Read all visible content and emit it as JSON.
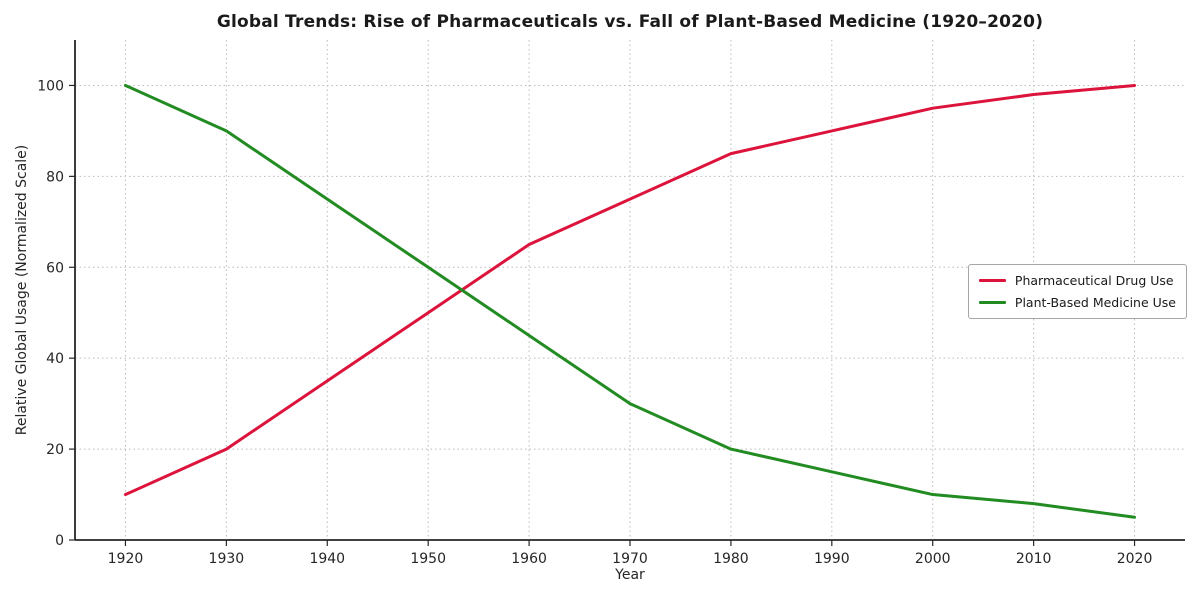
{
  "figure": {
    "background": "#ffffff"
  },
  "chart_data": {
    "type": "line",
    "title": "Global Trends: Rise of Pharmaceuticals vs. Fall of Plant-Based Medicine (1920–2020)",
    "xlabel": "Year",
    "ylabel": "Relative Global Usage (Normalized Scale)",
    "x": [
      1920,
      1930,
      1940,
      1950,
      1960,
      1970,
      1980,
      1990,
      2000,
      2010,
      2020
    ],
    "series": [
      {
        "name": "Pharmaceutical Drug Use",
        "color": "#dc143c",
        "values": [
          10,
          20,
          35,
          50,
          65,
          75,
          85,
          90,
          95,
          98,
          100
        ]
      },
      {
        "name": "Plant-Based Medicine Use",
        "color": "#228b22",
        "values": [
          100,
          90,
          75,
          60,
          45,
          30,
          20,
          15,
          10,
          8,
          5
        ]
      }
    ],
    "xticks": [
      1920,
      1930,
      1940,
      1950,
      1960,
      1970,
      1980,
      1990,
      2000,
      2010,
      2020
    ],
    "yticks": [
      0,
      20,
      40,
      60,
      80,
      100
    ],
    "xlim": [
      1915,
      2025
    ],
    "ylim": [
      0,
      110
    ],
    "grid": true,
    "grid_style": "dotted",
    "legend_position": "center-right",
    "colors": {
      "axis": "#262626",
      "grid": "#bbbbbb",
      "legend_border": "#a6a6a6"
    }
  }
}
